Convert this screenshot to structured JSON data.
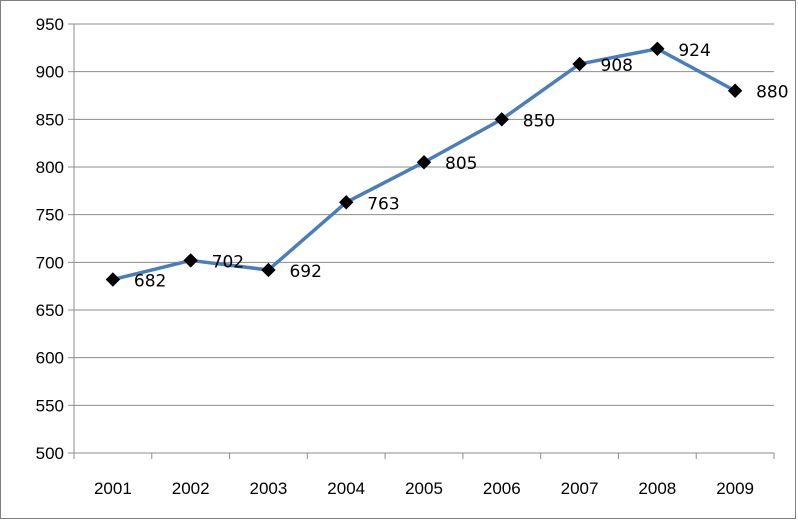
{
  "chart_data": {
    "type": "line",
    "title": "",
    "xlabel": "",
    "ylabel": "",
    "categories": [
      "2001",
      "2002",
      "2003",
      "2004",
      "2005",
      "2006",
      "2007",
      "2008",
      "2009"
    ],
    "series": [
      {
        "values": [
          682,
          702,
          692,
          763,
          805,
          850,
          908,
          924,
          880
        ],
        "color": "#4a7ebb",
        "marker": "diamond",
        "marker_color": "#000000",
        "data_labels": [
          "682",
          "702",
          "692",
          "763",
          "805",
          "850",
          "908",
          "924",
          "880"
        ]
      }
    ],
    "ylim": [
      500,
      950
    ],
    "yticks": [
      500,
      550,
      600,
      650,
      700,
      750,
      800,
      850,
      900,
      950
    ],
    "ytick_labels": [
      "500",
      "550",
      "600",
      "650",
      "700",
      "750",
      "800",
      "850",
      "900",
      "950"
    ],
    "grid": "horizontal",
    "legend": "none",
    "gridline_color": "#8c8c8c"
  }
}
